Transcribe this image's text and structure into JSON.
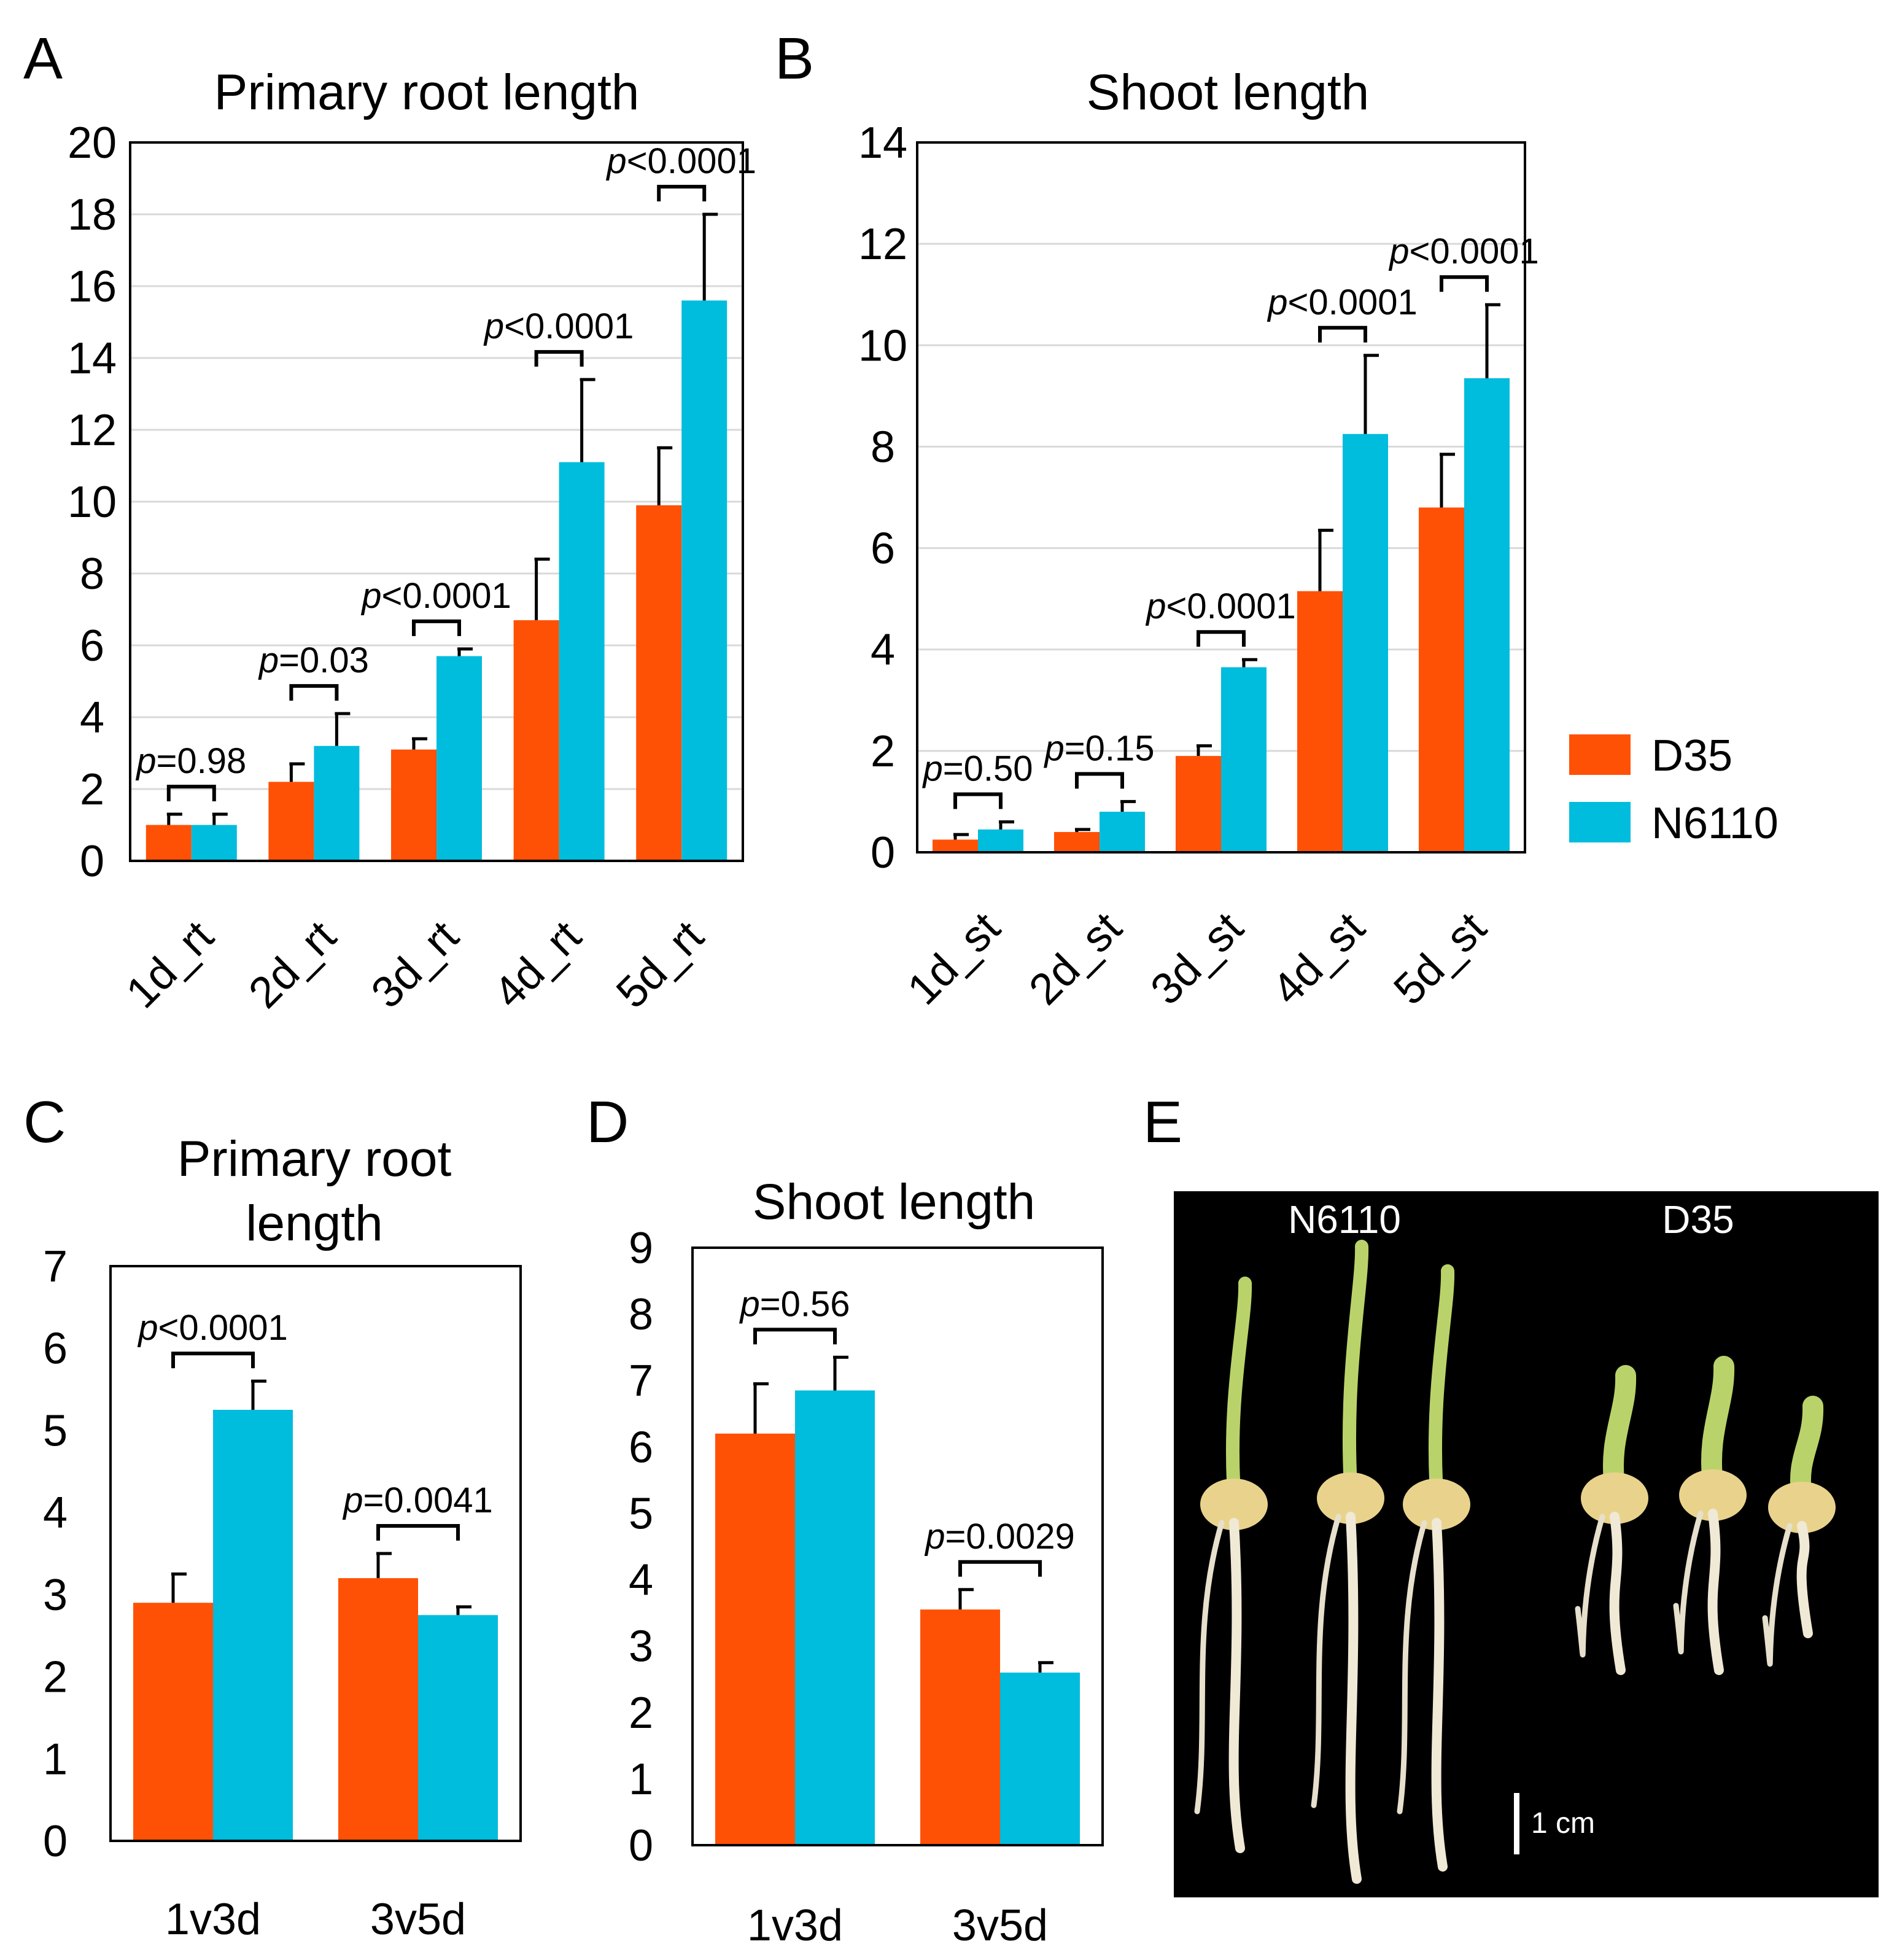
{
  "colors": {
    "D35": "#FF5106",
    "N6110": "#00BCDD"
  },
  "legend": {
    "series": [
      "D35",
      "N6110"
    ]
  },
  "photo": {
    "letter": "E",
    "labels": [
      "N6110",
      "D35"
    ],
    "scale_bar": "1 cm"
  },
  "chart_data": [
    {
      "panel": "A",
      "type": "bar",
      "title": "Primary root length",
      "categories": [
        "1d_rt",
        "2d_rt",
        "3d_rt",
        "4d_rt",
        "5d_rt"
      ],
      "series": [
        {
          "name": "D35",
          "values": [
            1.0,
            2.2,
            3.1,
            6.7,
            9.9
          ],
          "errors": [
            0.3,
            0.5,
            0.3,
            1.7,
            1.6
          ]
        },
        {
          "name": "N6110",
          "values": [
            1.0,
            3.2,
            5.7,
            11.1,
            15.6
          ],
          "errors": [
            0.3,
            0.9,
            0.2,
            2.3,
            2.4
          ]
        }
      ],
      "yticks": [
        0,
        2,
        4,
        6,
        8,
        10,
        12,
        14,
        16,
        18,
        20
      ],
      "ylim": [
        0,
        20
      ],
      "pvalues": [
        {
          "italic": "p",
          "text": "=0.98"
        },
        {
          "italic": "p",
          "text": "=0.03"
        },
        {
          "italic": "p",
          "text": "<0.0001"
        },
        {
          "italic": "p",
          "text": "<0.0001"
        },
        {
          "italic": "p",
          "text": "<0.0001"
        }
      ],
      "xlabel": "",
      "ylabel": "",
      "grid": true
    },
    {
      "panel": "B",
      "type": "bar",
      "title": "Shoot length",
      "categories": [
        "1d_st",
        "2d_st",
        "3d_st",
        "4d_st",
        "5d_st"
      ],
      "series": [
        {
          "name": "D35",
          "values": [
            0.25,
            0.4,
            1.9,
            5.15,
            6.8
          ],
          "errors": [
            0.1,
            0.05,
            0.2,
            1.2,
            1.05
          ]
        },
        {
          "name": "N6110",
          "values": [
            0.45,
            0.8,
            3.65,
            8.25,
            9.35
          ],
          "errors": [
            0.15,
            0.2,
            0.15,
            1.55,
            1.45
          ]
        }
      ],
      "yticks": [
        0,
        2,
        4,
        6,
        8,
        10,
        12,
        14
      ],
      "ylim": [
        0,
        14
      ],
      "pvalues": [
        {
          "italic": "p",
          "text": "=0.50"
        },
        {
          "italic": "p",
          "text": "=0.15"
        },
        {
          "italic": "p",
          "text": "<0.0001"
        },
        {
          "italic": "p",
          "text": "<0.0001"
        },
        {
          "italic": "p",
          "text": "<0.0001"
        }
      ],
      "xlabel": "",
      "ylabel": "",
      "grid": true
    },
    {
      "panel": "C",
      "type": "bar",
      "title": [
        "Primary root",
        "length"
      ],
      "categories": [
        "1v3d",
        "3v5d"
      ],
      "series": [
        {
          "name": "D35",
          "values": [
            2.9,
            3.2
          ],
          "errors": [
            0.35,
            0.3
          ]
        },
        {
          "name": "N6110",
          "values": [
            5.25,
            2.75
          ],
          "errors": [
            0.35,
            0.1
          ]
        }
      ],
      "yticks": [
        0,
        1,
        2,
        3,
        4,
        5,
        6,
        7
      ],
      "ylim": [
        0,
        7
      ],
      "pvalues": [
        {
          "italic": "p",
          "text": "<0.0001"
        },
        {
          "italic": "p",
          "text": "=0.0041"
        }
      ],
      "xlabel": "",
      "ylabel": "",
      "grid": false
    },
    {
      "panel": "D",
      "type": "bar",
      "title": "Shoot length",
      "categories": [
        "1v3d",
        "3v5d"
      ],
      "series": [
        {
          "name": "D35",
          "values": [
            6.2,
            3.55
          ],
          "errors": [
            0.75,
            0.3
          ]
        },
        {
          "name": "N6110",
          "values": [
            6.85,
            2.6
          ],
          "errors": [
            0.5,
            0.15
          ]
        }
      ],
      "yticks": [
        0,
        1,
        2,
        3,
        4,
        5,
        6,
        7,
        8,
        9
      ],
      "ylim": [
        0,
        9
      ],
      "pvalues": [
        {
          "italic": "p",
          "text": "=0.56"
        },
        {
          "italic": "p",
          "text": "=0.0029"
        }
      ],
      "xlabel": "",
      "ylabel": "",
      "grid": false
    }
  ]
}
